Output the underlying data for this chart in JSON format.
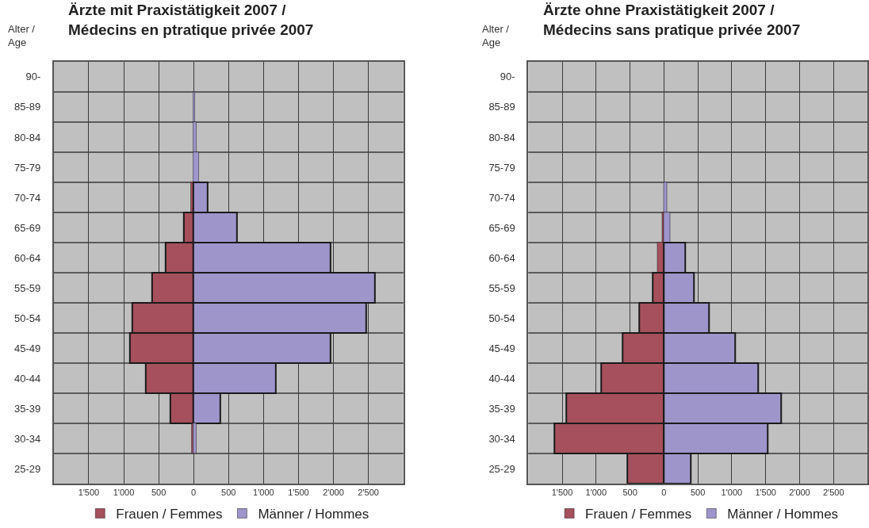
{
  "chart_data": [
    {
      "type": "bar",
      "orientation": "horizontal",
      "stacked": true,
      "title": "Ärzte mit Praxistätigkeit 2007 /\nMédecins en ptratique privée 2007",
      "ylabel": "Alter /\nAge",
      "categories": [
        "90-",
        "85-89",
        "80-84",
        "75-79",
        "70-74",
        "65-69",
        "60-64",
        "55-59",
        "50-54",
        "45-49",
        "40-44",
        "35-39",
        "30-34",
        "25-29"
      ],
      "series": [
        {
          "name": "Frauen / Femmes",
          "color": "#a5505c",
          "values": [
            null,
            null,
            null,
            null,
            -40,
            -140,
            -400,
            -590,
            -880,
            -910,
            -680,
            -330,
            -30,
            null
          ]
        },
        {
          "name": "Männer / Hommes",
          "color": "#9e96cb",
          "values": [
            null,
            20,
            40,
            70,
            200,
            620,
            1960,
            2590,
            2470,
            1960,
            1180,
            380,
            40,
            null
          ]
        }
      ],
      "xlim": [
        -2000,
        3000
      ],
      "xticks": [
        {
          "value": -1500,
          "label": "1'500"
        },
        {
          "value": -1000,
          "label": "1'000"
        },
        {
          "value": -500,
          "label": "500"
        },
        0,
        500,
        {
          "value": 1000,
          "label": "1'000"
        },
        {
          "value": 1500,
          "label": "1'500"
        },
        {
          "value": 2000,
          "label": "2'000"
        },
        {
          "value": 2500,
          "label": "2'500"
        }
      ],
      "grid": true,
      "legend": "bottom"
    },
    {
      "type": "bar",
      "orientation": "horizontal",
      "stacked": true,
      "title": "Ärzte ohne Praxistätigkeit 2007 /\nMédecins sans pratique privée 2007",
      "ylabel": "Alter /\nAge",
      "categories": [
        "90-",
        "85-89",
        "80-84",
        "75-79",
        "70-74",
        "65-69",
        "60-64",
        "55-59",
        "50-54",
        "45-49",
        "40-44",
        "35-39",
        "30-34",
        "25-29"
      ],
      "series": [
        {
          "name": "Frauen / Femmes",
          "color": "#a5505c",
          "values": [
            null,
            null,
            null,
            null,
            null,
            -30,
            -90,
            -160,
            -360,
            -610,
            -930,
            -1440,
            -1620,
            -540
          ]
        },
        {
          "name": "Männer / Hommes",
          "color": "#9e96cb",
          "values": [
            null,
            null,
            null,
            null,
            40,
            90,
            310,
            440,
            660,
            1050,
            1390,
            1730,
            1530,
            400
          ]
        }
      ],
      "xlim": [
        -2000,
        3000
      ],
      "xticks": [
        {
          "value": -1500,
          "label": "1'500"
        },
        {
          "value": -1000,
          "label": "1'000"
        },
        {
          "value": -500,
          "label": "500"
        },
        0,
        500,
        {
          "value": 1000,
          "label": "1'000"
        },
        {
          "value": 1500,
          "label": "1'500"
        },
        {
          "value": 2000,
          "label": "2'000"
        },
        {
          "value": 2500,
          "label": "2'500"
        }
      ],
      "grid": true,
      "legend": "bottom"
    }
  ]
}
